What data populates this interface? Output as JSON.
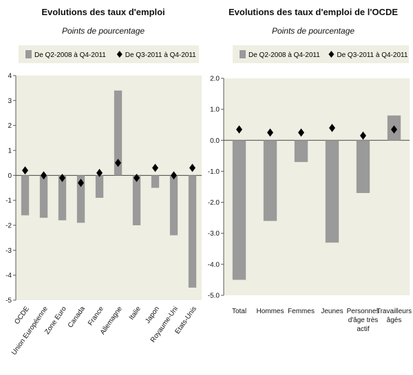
{
  "chart_data": [
    {
      "type": "bar",
      "title": "Evolutions des taux d'emploi",
      "subtitle": "Points de pourcentage",
      "categories": [
        "OCDE",
        "Union Européenne",
        "Zone Euro",
        "Canada",
        "France",
        "Allemagne",
        "Italie",
        "Japon",
        "Royaume-Uni",
        "Etats-Unis"
      ],
      "series": [
        {
          "name": "De Q2-2008 à Q4-2011",
          "marker": "bar",
          "values": [
            -1.6,
            -1.7,
            -1.8,
            -1.9,
            -0.9,
            3.4,
            -2.0,
            -0.5,
            -2.4,
            -4.5
          ]
        },
        {
          "name": "De Q3-2011 à Q4-2011",
          "marker": "diamond",
          "values": [
            0.2,
            0.0,
            -0.1,
            -0.3,
            0.1,
            0.5,
            -0.1,
            0.3,
            0.0,
            0.3
          ]
        }
      ],
      "ylim": [
        -5,
        4
      ],
      "yticks": [
        4,
        3,
        2,
        1,
        0,
        -1,
        -2,
        -3,
        -4,
        -5
      ],
      "ytick_labels": [
        "4",
        "3",
        "2",
        "1",
        "0",
        "-1",
        "-2",
        "-3",
        "-4",
        "-5"
      ],
      "xlabel": "",
      "ylabel": "",
      "legend_position": "top",
      "colors": {
        "bar": "#9a9a9a",
        "diamond": "#000000",
        "plot_bg": "#eeeee2",
        "legend_bg": "#eeeee2"
      }
    },
    {
      "type": "bar",
      "title": "Evolutions des taux d'emploi de l'OCDE",
      "subtitle": "Points de pourcentage",
      "categories": [
        "Total",
        "Hommes",
        "Femmes",
        "Jeunes",
        "Personnes d'âge très actif",
        "Travailleurs âgés"
      ],
      "series": [
        {
          "name": "De Q2-2008 à Q4-2011",
          "marker": "bar",
          "values": [
            -4.5,
            -2.6,
            -0.7,
            -3.3,
            -1.7,
            0.8
          ]
        },
        {
          "name": "De Q3-2011 à Q4-2011",
          "marker": "diamond",
          "values": [
            0.35,
            0.25,
            0.25,
            0.4,
            0.15,
            0.35
          ]
        }
      ],
      "ylim": [
        -5.0,
        2.0
      ],
      "yticks": [
        2.0,
        1.0,
        0.0,
        -1.0,
        -2.0,
        -3.0,
        -4.0,
        -5.0
      ],
      "ytick_labels": [
        "2.0",
        "1.0",
        "0.0",
        "-1.0",
        "-2.0",
        "-3.0",
        "-4.0",
        "-5.0"
      ],
      "xlabel": "",
      "ylabel": "",
      "legend_position": "top",
      "colors": {
        "bar": "#9a9a9a",
        "diamond": "#000000",
        "plot_bg": "#eeeee2",
        "legend_bg": "#eeeee2"
      }
    }
  ]
}
